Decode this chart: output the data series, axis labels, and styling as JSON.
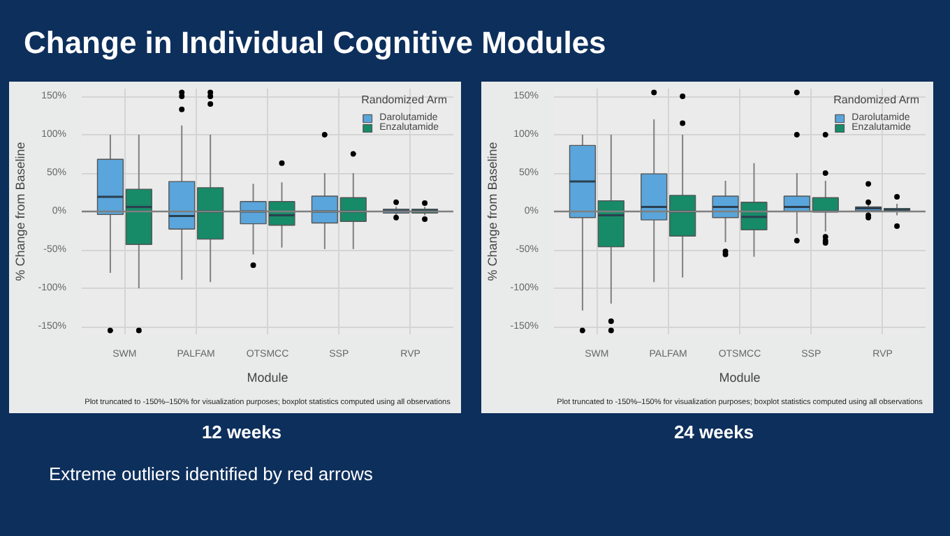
{
  "chart_data": [
    {
      "type": "box",
      "title": "12 weeks",
      "xlabel": "Module",
      "ylabel": "% Change from Baseline",
      "legend_title": "Randomized Arm",
      "legend": "top right",
      "grid": true,
      "categories": [
        "SWM",
        "PALFAM",
        "OTSMCC",
        "SSP",
        "RVP"
      ],
      "ylim": [
        -160,
        160
      ],
      "yticks": [
        {
          "value": -150,
          "label": "-150%"
        },
        {
          "value": -100,
          "label": "-100%"
        },
        {
          "value": -50,
          "label": "-50%"
        },
        {
          "value": 0,
          "label": "0%"
        },
        {
          "value": 50,
          "label": "50%"
        },
        {
          "value": 100,
          "label": "100%"
        },
        {
          "value": 150,
          "label": "150%"
        }
      ],
      "ref_lines": [
        {
          "axis": "y",
          "value": 0,
          "color": "#7f7f7f"
        }
      ],
      "annotations": [
        "Change in Individual Cognitive Modules",
        "Plot truncated to -150%–150% for visualization purposes; boxplot statistics computed using all observations",
        "Extreme outliers identified by red arrows"
      ],
      "series": [
        {
          "name": "Darolutamide",
          "color": "#5aa5db",
          "boxes": [
            {
              "low": -80,
              "q1": -4,
              "median": 19,
              "q3": 68,
              "high": 100,
              "outliers": [
                -155
              ]
            },
            {
              "low": -89,
              "q1": -23,
              "median": -6,
              "q3": 39,
              "high": 112,
              "outliers": [
                133,
                150,
                155
              ]
            },
            {
              "low": -56,
              "q1": -16,
              "median": 0,
              "q3": 13,
              "high": 36,
              "outliers": [
                -70
              ]
            },
            {
              "low": -49,
              "q1": -15,
              "median": 0,
              "q3": 20,
              "high": 50,
              "outliers": [
                100
              ]
            },
            {
              "low": -5,
              "q1": -2,
              "median": 1,
              "q3": 3,
              "high": 6,
              "outliers": [
                12,
                -8
              ]
            }
          ]
        },
        {
          "name": "Enzalutamide",
          "color": "#178a68",
          "boxes": [
            {
              "low": -100,
              "q1": -43,
              "median": 6,
              "q3": 29,
              "high": 100,
              "outliers": [
                -155
              ]
            },
            {
              "low": -92,
              "q1": -36,
              "median": 0,
              "q3": 31,
              "high": 100,
              "outliers": [
                140,
                150,
                155
              ]
            },
            {
              "low": -47,
              "q1": -18,
              "median": -5,
              "q3": 13,
              "high": 38,
              "outliers": [
                63
              ]
            },
            {
              "low": -49,
              "q1": -13,
              "median": 0,
              "q3": 18,
              "high": 50,
              "outliers": [
                75
              ]
            },
            {
              "low": -5,
              "q1": -2,
              "median": 1,
              "q3": 3,
              "high": 6,
              "outliers": [
                11,
                -10
              ]
            }
          ]
        }
      ]
    },
    {
      "type": "box",
      "title": "24 weeks",
      "xlabel": "Module",
      "ylabel": "% Change from Baseline",
      "legend_title": "Randomized Arm",
      "legend": "top right",
      "grid": true,
      "categories": [
        "SWM",
        "PALFAM",
        "OTSMCC",
        "SSP",
        "RVP"
      ],
      "ylim": [
        -160,
        160
      ],
      "yticks": [
        {
          "value": -150,
          "label": "-150%"
        },
        {
          "value": -100,
          "label": "-100%"
        },
        {
          "value": -50,
          "label": "-50%"
        },
        {
          "value": 0,
          "label": "0%"
        },
        {
          "value": 50,
          "label": "50%"
        },
        {
          "value": 100,
          "label": "100%"
        },
        {
          "value": 150,
          "label": "150%"
        }
      ],
      "ref_lines": [
        {
          "axis": "y",
          "value": 0,
          "color": "#7f7f7f"
        }
      ],
      "annotations": [
        "Plot truncated to -150%–150% for visualization purposes; boxplot statistics computed using all observations"
      ],
      "series": [
        {
          "name": "Darolutamide",
          "color": "#5aa5db",
          "boxes": [
            {
              "low": -129,
              "q1": -8,
              "median": 39,
              "q3": 86,
              "high": 100,
              "outliers": [
                -155
              ]
            },
            {
              "low": -92,
              "q1": -11,
              "median": 6,
              "q3": 49,
              "high": 120,
              "outliers": [
                155
              ]
            },
            {
              "low": -40,
              "q1": -8,
              "median": 6,
              "q3": 20,
              "high": 40,
              "outliers": [
                -52,
                -56
              ]
            },
            {
              "low": -29,
              "q1": 0,
              "median": 6,
              "q3": 20,
              "high": 50,
              "outliers": [
                -38,
                100,
                155
              ]
            },
            {
              "low": -3,
              "q1": 1,
              "median": 4,
              "q3": 6,
              "high": 10,
              "outliers": [
                36,
                12,
                -5,
                -8
              ]
            }
          ]
        },
        {
          "name": "Enzalutamide",
          "color": "#178a68",
          "boxes": [
            {
              "low": -120,
              "q1": -46,
              "median": -5,
              "q3": 14,
              "high": 100,
              "outliers": [
                -143,
                -155
              ]
            },
            {
              "low": -86,
              "q1": -32,
              "median": 0,
              "q3": 21,
              "high": 100,
              "outliers": [
                115,
                150
              ]
            },
            {
              "low": -59,
              "q1": -24,
              "median": -7,
              "q3": 12,
              "high": 63
            },
            {
              "low": -26,
              "q1": 0,
              "median": 0,
              "q3": 18,
              "high": 40,
              "outliers": [
                50,
                100,
                -33,
                -38,
                -41
              ]
            },
            {
              "low": -5,
              "q1": 0,
              "median": 2,
              "q3": 4,
              "high": 10,
              "outliers": [
                19,
                -19
              ]
            }
          ]
        }
      ]
    }
  ]
}
